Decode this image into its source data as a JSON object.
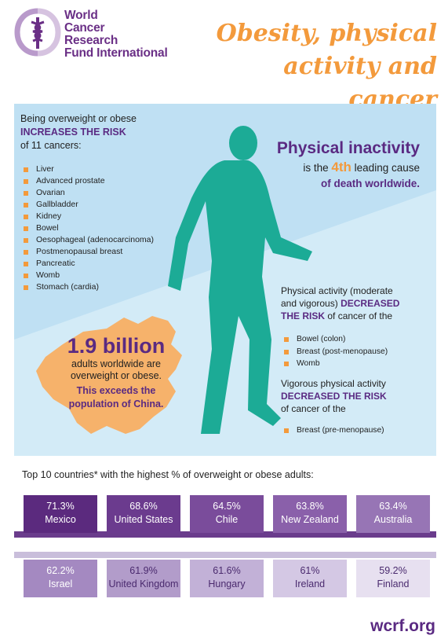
{
  "header": {
    "org_line1": "World",
    "org_line2": "Cancer",
    "org_line3": "Research",
    "org_line4": "Fund International",
    "title_line1": "Obesity, physical",
    "title_line2": "activity and cancer"
  },
  "colors": {
    "purple": "#5a2a82",
    "orange": "#f39a3c",
    "teal": "#1cab96",
    "blue": "#c4e2f3"
  },
  "risk": {
    "intro_line1": "Being overweight or obese",
    "intro_strong": "INCREASES THE RISK",
    "intro_line3": "of 11 cancers:",
    "items": [
      "Liver",
      "Advanced prostate",
      "Ovarian",
      "Gallbladder",
      "Kidney",
      "Bowel",
      "Oesophageal (adenocarcinoma)",
      "Postmenopausal breast",
      "Pancreatic",
      "Womb",
      "Stomach (cardia)"
    ]
  },
  "inactivity": {
    "head": "Physical inactivity",
    "pre": "is the",
    "rank": "4th",
    "post": "leading cause",
    "line2": "of death worldwide."
  },
  "activity": {
    "line1": "Physical activity (moderate",
    "line2_pre": "and vigorous)",
    "line2_strong": "DECREASED",
    "line3_strong": "THE RISK",
    "line3_post": "of cancer of the",
    "items": [
      "Bowel (colon)",
      "Breast (post-menopause)",
      "Womb"
    ]
  },
  "vigorous": {
    "line1": "Vigorous physical activity",
    "line2_strong": "DECREASED THE RISK",
    "line3": "of cancer of the",
    "items": [
      "Breast (pre-menopause)"
    ]
  },
  "billion": {
    "big": "1.9 billion",
    "line1": "adults worldwide are",
    "line2": "overweight or obese.",
    "line3": "This exceeds the",
    "line4": "population of China."
  },
  "countries": {
    "title": "Top 10 countries* with the highest % of overweight or obese adults:",
    "row1": [
      {
        "pct": "71.3%",
        "name": "Mexico",
        "color": "#5b2a7e"
      },
      {
        "pct": "68.6%",
        "name": "United States",
        "color": "#6b3b8e"
      },
      {
        "pct": "64.5%",
        "name": "Chile",
        "color": "#7a4c9b"
      },
      {
        "pct": "63.8%",
        "name": "New Zealand",
        "color": "#8a60aa"
      },
      {
        "pct": "63.4%",
        "name": "Australia",
        "color": "#9775b5"
      }
    ],
    "row2": [
      {
        "pct": "62.2%",
        "name": "Israel",
        "color": "#a489c1"
      },
      {
        "pct": "61.9%",
        "name": "United Kingdom",
        "color": "#b29cca"
      },
      {
        "pct": "61.6%",
        "name": "Hungary",
        "color": "#c2b1d7"
      },
      {
        "pct": "61%",
        "name": "Ireland",
        "color": "#d4c8e4"
      },
      {
        "pct": "59.2%",
        "name": "Finland",
        "color": "#e7e0f0"
      }
    ]
  },
  "footer": {
    "url": "wcrf.org"
  }
}
